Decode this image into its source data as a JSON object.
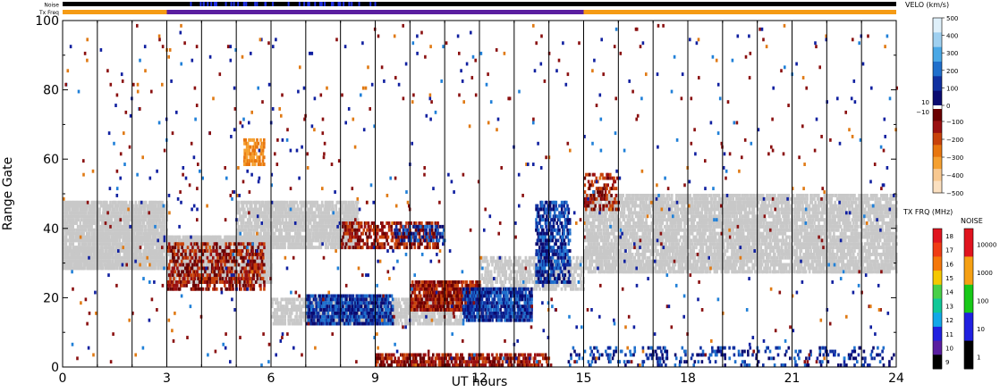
{
  "chart_data": {
    "type": "heatmap",
    "xlabel": "UT hours",
    "ylabel": "Range Gate",
    "x_ticks": [
      0,
      3,
      6,
      9,
      12,
      15,
      18,
      21,
      24
    ],
    "y_ticks": [
      0,
      20,
      40,
      60,
      80,
      100
    ],
    "xlim": [
      0,
      24
    ],
    "ylim": [
      0,
      100
    ],
    "vertical_dividers_hours": [
      1,
      2,
      3,
      4,
      5,
      6,
      7,
      8,
      9,
      10,
      11,
      12,
      13,
      14,
      15,
      16,
      17,
      18,
      19,
      20,
      21,
      22,
      23
    ],
    "top_bars": {
      "noise_label": "Noise",
      "txfreq_label": "Tx Freq",
      "txfreq_segments": [
        {
          "start": 0,
          "end": 3,
          "color": "#f59b14"
        },
        {
          "start": 3,
          "end": 15,
          "color": "#5a1ea0"
        },
        {
          "start": 15,
          "end": 24,
          "color": "#f59b14"
        }
      ]
    },
    "velocity_colorbar": {
      "title": "VELO (km/s)",
      "labels_positive": [
        "500",
        "400",
        "300",
        "200",
        "100",
        "0"
      ],
      "labels_negative": [
        "−100",
        "−200",
        "−300",
        "−400",
        "−500"
      ],
      "near_zero_labels": [
        "10",
        "−10"
      ],
      "colors_positive": [
        "#dff0fa",
        "#9fd0f0",
        "#4aa8e6",
        "#1f6fcc",
        "#1030a0",
        "#0a0a70"
      ],
      "colors_negative": [
        "#6a0000",
        "#9a1010",
        "#c8420a",
        "#e8760e",
        "#f5a030",
        "#f8c890",
        "#fbe0c0"
      ],
      "ground_scatter_color": "#c8c8c8"
    },
    "txfreq_colorbar": {
      "title": "TX FRQ (MHz)",
      "labels": [
        "18",
        "17",
        "16",
        "15",
        "14",
        "13",
        "12",
        "11",
        "10",
        "9"
      ],
      "colors": [
        "#e0141e",
        "#f03c14",
        "#f5780a",
        "#f5c800",
        "#48d048",
        "#10c898",
        "#12a8e8",
        "#2020e0",
        "#5a1ea0",
        "#000000"
      ]
    },
    "noise_colorbar": {
      "title": "NOISE",
      "labels": [
        "10000",
        "1000",
        "100",
        "10",
        "1"
      ],
      "colors": [
        "#e0141e",
        "#f5a014",
        "#18c818",
        "#2020e0",
        "#000000"
      ]
    },
    "regions": [
      {
        "label": "ground scatter",
        "kind": "ground",
        "t0": 0.0,
        "t1": 3.0,
        "g0": 28,
        "g1": 48,
        "density": 0.85
      },
      {
        "label": "ground scatter",
        "kind": "ground",
        "t0": 3.0,
        "t1": 6.0,
        "g0": 24,
        "g1": 38,
        "density": 0.8
      },
      {
        "label": "ground scatter",
        "kind": "ground",
        "t0": 5.0,
        "t1": 8.5,
        "g0": 34,
        "g1": 48,
        "density": 0.75
      },
      {
        "label": "ground scatter",
        "kind": "ground",
        "t0": 6.0,
        "t1": 11.5,
        "g0": 12,
        "g1": 20,
        "density": 0.6
      },
      {
        "label": "ground scatter",
        "kind": "ground",
        "t0": 12.0,
        "t1": 15.0,
        "g0": 22,
        "g1": 32,
        "density": 0.5
      },
      {
        "label": "ground scatter",
        "kind": "ground",
        "t0": 15.0,
        "t1": 24.0,
        "g0": 27,
        "g1": 50,
        "density": 0.7
      },
      {
        "label": "negative velocity",
        "kind": "neg",
        "t0": 3.0,
        "t1": 5.8,
        "g0": 22,
        "g1": 36,
        "density": 0.45
      },
      {
        "label": "negative velocity",
        "kind": "neg",
        "t0": 8.0,
        "t1": 10.8,
        "g0": 34,
        "g1": 42,
        "density": 0.45
      },
      {
        "label": "negative velocity",
        "kind": "neg",
        "t0": 10.0,
        "t1": 12.0,
        "g0": 16,
        "g1": 25,
        "density": 0.7
      },
      {
        "label": "negative velocity",
        "kind": "neg",
        "t0": 9.0,
        "t1": 14.0,
        "g0": 0,
        "g1": 4,
        "density": 0.55
      },
      {
        "label": "negative velocity",
        "kind": "neg",
        "t0": 15.0,
        "t1": 16.0,
        "g0": 45,
        "g1": 56,
        "density": 0.35
      },
      {
        "label": "positive velocity",
        "kind": "pos",
        "t0": 7.0,
        "t1": 9.5,
        "g0": 12,
        "g1": 21,
        "density": 0.7
      },
      {
        "label": "positive velocity",
        "kind": "pos",
        "t0": 11.5,
        "t1": 13.5,
        "g0": 13,
        "g1": 23,
        "density": 0.7
      },
      {
        "label": "positive velocity",
        "kind": "pos",
        "t0": 13.6,
        "t1": 14.6,
        "g0": 24,
        "g1": 48,
        "density": 0.55
      },
      {
        "label": "positive velocity",
        "kind": "pos",
        "t0": 9.5,
        "t1": 11.0,
        "g0": 36,
        "g1": 41,
        "density": 0.35
      },
      {
        "label": "positive velocity",
        "kind": "pos",
        "t0": 14.5,
        "t1": 24.0,
        "g0": 0,
        "g1": 6,
        "density": 0.15
      },
      {
        "label": "strong negative velocity",
        "kind": "orange",
        "t0": 5.2,
        "t1": 5.8,
        "g0": 58,
        "g1": 66,
        "density": 0.6
      }
    ],
    "scatter_background": {
      "t0": 0,
      "t1": 24,
      "g0": 0,
      "g1": 100,
      "density": 0.012
    }
  }
}
